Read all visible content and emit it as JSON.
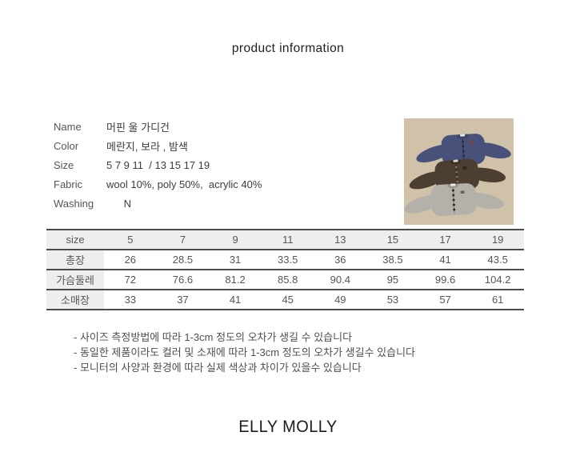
{
  "title": "product information",
  "brand": "ELLY MOLLY",
  "attributes": [
    {
      "label": "Name",
      "value": "머핀 울 가디건"
    },
    {
      "label": "Color",
      "value": "메란지, 보라 , 밤색"
    },
    {
      "label": "Size",
      "value": "5 7 9 11  / 13 15 17 19"
    },
    {
      "label": "Fabric",
      "value": "wool 10%, poly 50%,  acrylic 40%"
    },
    {
      "label": "Washing",
      "value": "      N"
    }
  ],
  "photo": {
    "alt": "three knit wool cardigans flat lay on beige background",
    "background_color": "#cfc2a9",
    "cardigan_colors": [
      "#485179",
      "#4c3e30",
      "#b4b1aa"
    ]
  },
  "size_table": {
    "header_label": "size",
    "sizes": [
      "5",
      "7",
      "9",
      "11",
      "13",
      "15",
      "17",
      "19"
    ],
    "rows": [
      {
        "label": "총장",
        "values": [
          "26",
          "28.5",
          "31",
          "33.5",
          "36",
          "38.5",
          "41",
          "43.5"
        ]
      },
      {
        "label": "가슴둘레",
        "values": [
          "72",
          "76.6",
          "81.2",
          "85.8",
          "90.4",
          "95",
          "99.6",
          "104.2"
        ]
      },
      {
        "label": "소매장",
        "values": [
          "33",
          "37",
          "41",
          "45",
          "49",
          "53",
          "57",
          "61"
        ]
      }
    ]
  },
  "notes": [
    "- 사이즈 측정방법에 따라 1-3cm 정도의 오차가 생길 수 있습니다",
    "- 동일한 제품이라도 컬러 및 소재에 따라 1-3cm 정도의 오차가 생길수 있습니다",
    "- 모니터의 사양과 환경에 따라 실제 색상과 차이가 있을수 있습니다"
  ]
}
